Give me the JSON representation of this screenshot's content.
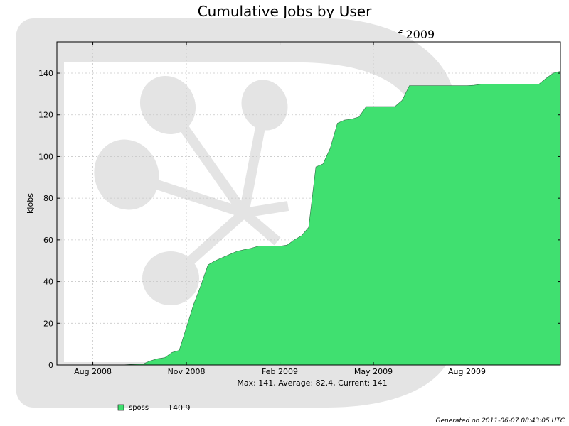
{
  "title": "Cumulative Jobs by User",
  "subtitle": "70 Weeks from Week 25 of 2008 to Week 43 of 2009",
  "footer": "Generated on 2011-06-07 08:43:05 UTC",
  "colors": {
    "series": "#40e070",
    "watermark": "#e4e4e4",
    "grid": "#c8c8c8"
  },
  "chart_data": {
    "type": "area",
    "stacked": true,
    "title": "Cumulative Jobs by User",
    "subtitle": "70 Weeks from Week 25 of 2008 to Week 43 of 2009",
    "xlabel": "Max: 141, Average: 82.4, Current: 141",
    "ylabel": "kjobs",
    "x_ticks": [
      "Aug 2008",
      "Nov 2008",
      "Feb 2009",
      "May 2009",
      "Aug 2009"
    ],
    "y_ticks": [
      0,
      20,
      40,
      60,
      80,
      100,
      120,
      140
    ],
    "ylim": [
      0,
      155
    ],
    "x_range_weeks": [
      0,
      70
    ],
    "x_ticks_week": [
      5,
      18,
      31,
      44,
      57
    ],
    "grid": true,
    "legend_position": "bottom-left",
    "series": [
      {
        "name": "sposs",
        "legend_value": "140.9",
        "color": "#40e070",
        "x": [
          0,
          5,
          6,
          7,
          8,
          9,
          10,
          11,
          12,
          13,
          14,
          15,
          16,
          17,
          18,
          19,
          20,
          21,
          22,
          23,
          24,
          25,
          26,
          27,
          28,
          29,
          30,
          31,
          32,
          33,
          34,
          35,
          36,
          37,
          38,
          39,
          40,
          41,
          42,
          43,
          44,
          45,
          46,
          47,
          48,
          49,
          50,
          51,
          52,
          53,
          54,
          55,
          56,
          57,
          58,
          59,
          60,
          61,
          62,
          63,
          64,
          65,
          66,
          67,
          68,
          69,
          70
        ],
        "values": [
          0,
          0,
          0,
          0,
          0,
          0,
          0.2,
          0.4,
          0.5,
          2,
          3,
          3.5,
          6,
          7,
          18,
          29,
          38,
          48,
          50,
          51.5,
          53,
          54.5,
          55.3,
          56,
          57,
          57,
          57,
          57,
          57.5,
          60,
          62,
          66,
          95,
          96.5,
          104,
          116,
          117.5,
          118,
          119,
          124,
          124,
          124,
          124,
          124,
          127,
          134,
          134,
          134,
          134,
          134,
          134,
          134,
          134,
          134,
          134.2,
          134.7,
          134.7,
          134.7,
          134.7,
          134.7,
          134.7,
          134.7,
          134.7,
          134.7,
          137.5,
          140,
          140.9
        ]
      }
    ]
  }
}
